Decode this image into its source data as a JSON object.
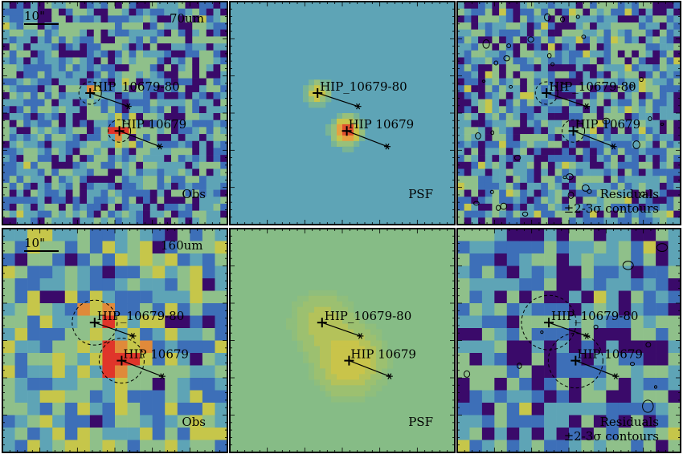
{
  "figure": {
    "rows": [
      {
        "band": "70um",
        "scale_label": "10\"",
        "panels": [
          {
            "kind": "observed",
            "label": "Obs",
            "sources": [
              "HIP_10679-80",
              "HIP 10679"
            ]
          },
          {
            "kind": "psf",
            "label": "PSF",
            "sources": [
              "HIP_10679-80",
              "HIP 10679"
            ]
          },
          {
            "kind": "residual",
            "label": "Residuals",
            "sublabel": "±2-3σ contours",
            "sources": [
              "HIP_10679-80",
              "HIP 10679"
            ]
          }
        ]
      },
      {
        "band": "160um",
        "scale_label": "10\"",
        "panels": [
          {
            "kind": "observed",
            "label": "Obs",
            "sources": [
              "HIP_10679-80",
              "HIP 10679"
            ]
          },
          {
            "kind": "psf",
            "label": "PSF",
            "sources": [
              "HIP_10679-80",
              "HIP 10679"
            ]
          },
          {
            "kind": "residual",
            "label": "Residuals",
            "sublabel": "±2-3σ contours",
            "sources": [
              "HIP_10679-80",
              "HIP 10679"
            ]
          }
        ]
      }
    ]
  },
  "colors": {
    "low": "#3a0a6a",
    "blue": "#3d6fb8",
    "mid": "#5ea4b6",
    "green": "#8fc08a",
    "yellow": "#c6c64a",
    "orange": "#e08a3a",
    "red": "#e0352a"
  }
}
